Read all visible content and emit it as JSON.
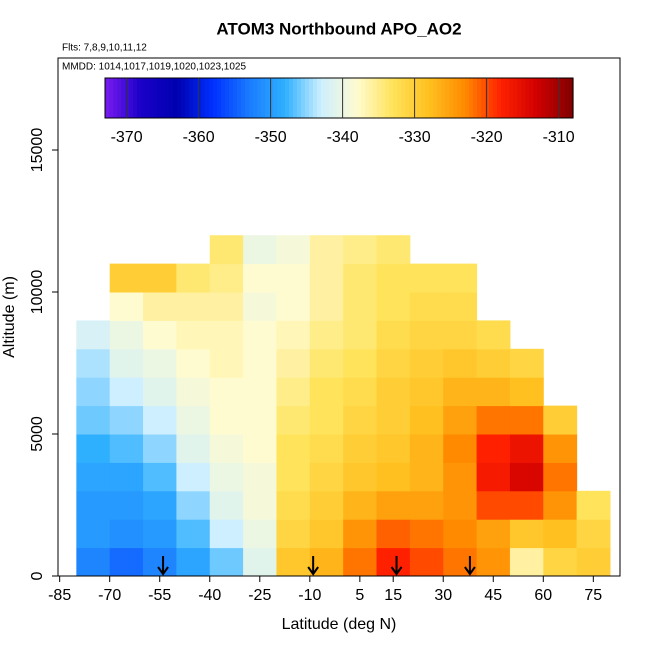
{
  "chart_data": {
    "type": "heatmap",
    "title": "ATOM3 Northbound APO_AO2",
    "subtitle": "Flts: 7,8,9,10,11,12",
    "annotation": "MMDD: 1014,1017,1019,1020,1023,1025",
    "x_label": "Latitude (deg N)",
    "y_label": "Altitude (m)",
    "xlim": [
      -85.5,
      83
    ],
    "xticks": [
      -85,
      -70,
      -55,
      -40,
      -25,
      -10,
      5,
      15,
      30,
      45,
      60,
      75
    ],
    "ylim": [
      0,
      18240
    ],
    "yticks": [
      0,
      5000,
      10000,
      15000
    ],
    "lat": [
      -75,
      -65,
      -55,
      -45,
      -35,
      -25,
      -15,
      -5,
      5,
      15,
      25,
      35,
      45,
      55,
      65,
      75
    ],
    "alt": [
      500,
      1500,
      2500,
      3500,
      4500,
      5500,
      6500,
      7500,
      8500,
      9500,
      10500,
      11500
    ],
    "z": [
      [
        -352,
        -350,
        -350,
        -349,
        -348,
        -346,
        -345,
        -344,
        -342,
        null,
        null,
        null
      ],
      [
        -354,
        -351,
        -350,
        -349,
        -347,
        -345,
        -343,
        -341,
        -340,
        -338,
        -330,
        null
      ],
      [
        -352,
        -350,
        -349,
        -347,
        -345,
        -343,
        -341,
        -340,
        -338,
        -336,
        -330,
        null
      ],
      [
        -349,
        -347,
        -345,
        -343,
        -341,
        -340,
        -339,
        -338,
        -337,
        -336,
        -334,
        null
      ],
      [
        -346,
        -343,
        -341,
        -340,
        -339,
        -338,
        -338,
        -337,
        -337,
        -336,
        -335,
        -334
      ],
      [
        -341,
        -340,
        -339,
        -339,
        -338,
        -338,
        -338,
        -338,
        -338,
        -339,
        -338,
        -340
      ],
      [
        -329,
        -331,
        -332,
        -333,
        -333,
        -334,
        -335,
        -336,
        -337,
        -338,
        -338,
        -339
      ],
      [
        -327,
        -329,
        -330,
        -331,
        -332,
        -333,
        -333,
        -334,
        -335,
        -336,
        -336,
        -336
      ],
      [
        -322,
        -324,
        -327,
        -329,
        -330,
        -331,
        -332,
        -333,
        -334,
        -334,
        -334,
        -335
      ],
      [
        -318,
        -321,
        -325,
        -328,
        -329,
        -330,
        -330,
        -331,
        -332,
        -333,
        -333,
        -334
      ],
      [
        -320,
        -322,
        -325,
        -327,
        -327,
        -328,
        -329,
        -330,
        -331,
        -332,
        -333,
        null
      ],
      [
        -322,
        -323,
        -324,
        -324,
        -323,
        -325,
        -327,
        -329,
        -331,
        -332,
        -333,
        null
      ],
      [
        -324,
        -325,
        -320,
        -317,
        -318,
        -322,
        -327,
        -330,
        -332,
        null,
        null,
        null
      ],
      [
        -336,
        -329,
        -320,
        -314,
        -316,
        -322,
        -328,
        -331,
        null,
        null,
        null,
        null
      ],
      [
        -331,
        -328,
        -324,
        -322,
        -324,
        -330,
        null,
        null,
        null,
        null,
        null,
        null
      ],
      [
        -330,
        -331,
        -333,
        null,
        null,
        null,
        null,
        null,
        null,
        null,
        null,
        null
      ]
    ],
    "zlim": [
      -373,
      -308
    ],
    "zticks": [
      -370,
      -360,
      -350,
      -340,
      -330,
      -320,
      -310
    ],
    "colors": [
      "#7a1cf0",
      "#1a00c8",
      "#0000b0",
      "#0030ff",
      "#1a7aff",
      "#2fb0ff",
      "#cdefff",
      "#fffbd0",
      "#ffe35a",
      "#ffc020",
      "#ff8a00",
      "#ff2000",
      "#d00000",
      "#800000"
    ],
    "arrows": [
      -54,
      -9,
      16,
      38
    ]
  }
}
